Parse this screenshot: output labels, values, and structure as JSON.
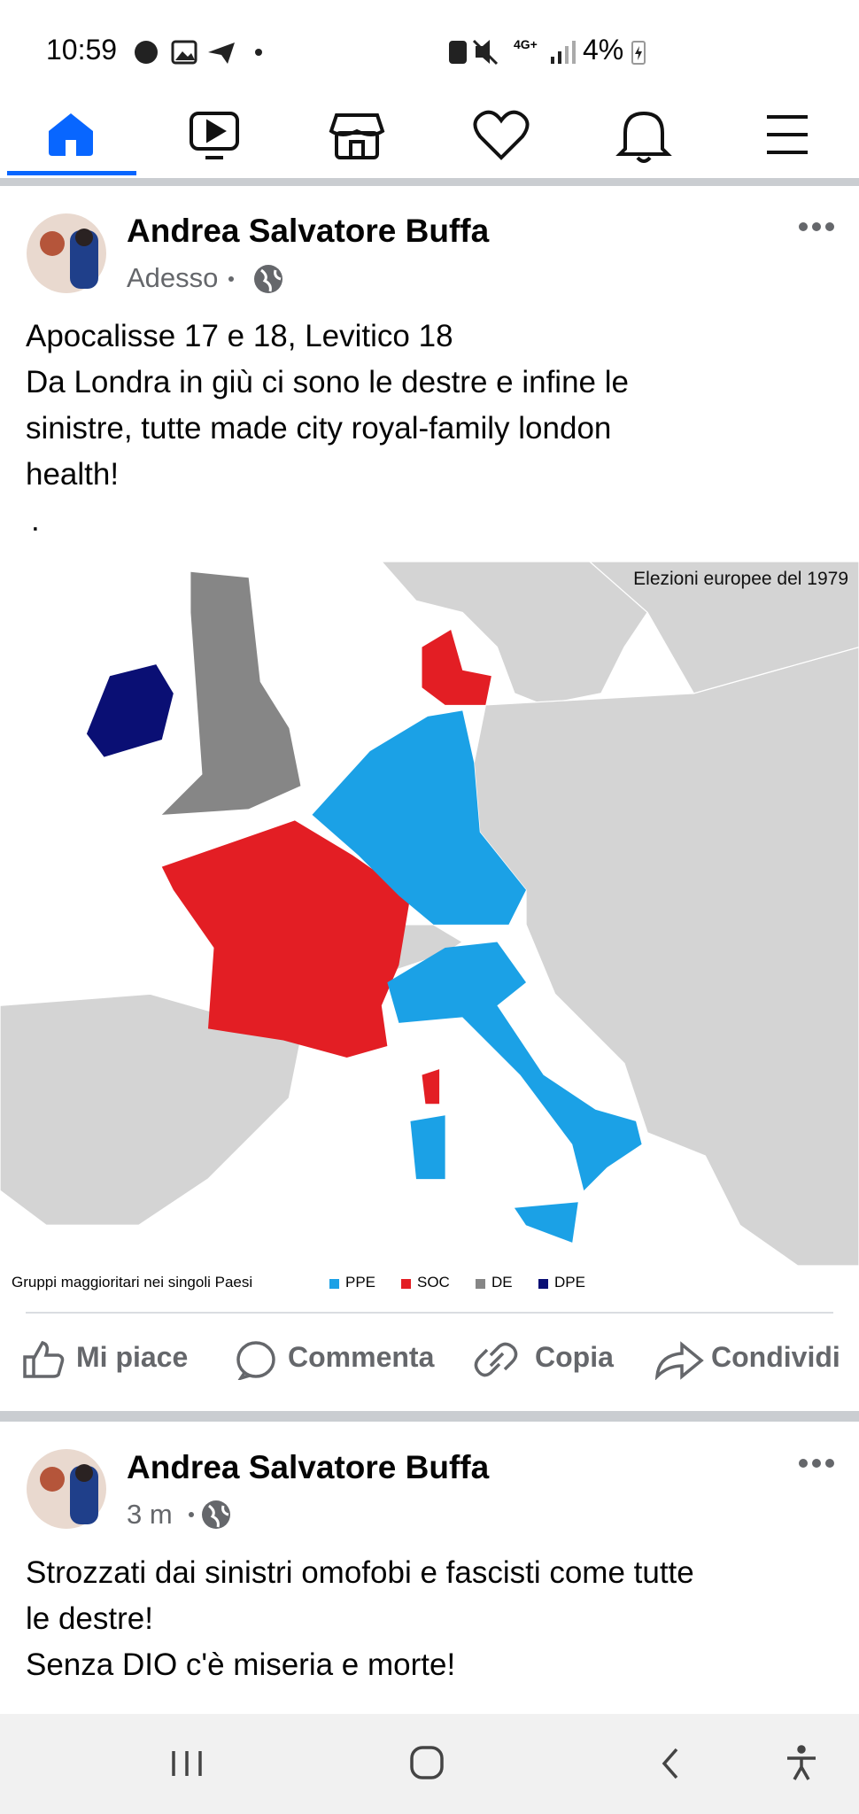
{
  "status_bar": {
    "time": "10:59",
    "network": "4G+",
    "battery": "4%"
  },
  "posts": [
    {
      "author": "Andrea Salvatore Buffa",
      "time": "Adesso",
      "text_lines": [
        "Apocalisse 17 e 18, Levitico 18",
        "Da Londra in giù ci sono le destre e infine le",
        "sinistre, tutte made city royal-family london",
        "health!",
        "."
      ],
      "image": {
        "title": "Elezioni europee del 1979",
        "legend_title": "Gruppi maggioritari nei singoli Paesi",
        "legend": [
          {
            "label": "PPE",
            "color": "#1ba1e6"
          },
          {
            "label": "SOC",
            "color": "#e31e24"
          },
          {
            "label": "DE",
            "color": "#868686"
          },
          {
            "label": "DPE",
            "color": "#0a0f74"
          }
        ]
      },
      "actions": [
        "Mi piace",
        "Commenta",
        "Copia",
        "Condividi"
      ]
    },
    {
      "author": "Andrea Salvatore Buffa",
      "time": "3 m",
      "text_lines": [
        "Strozzati dai sinistri omofobi e fascisti come tutte",
        "le destre!",
        "Senza DIO c'è miseria e morte!"
      ]
    }
  ]
}
